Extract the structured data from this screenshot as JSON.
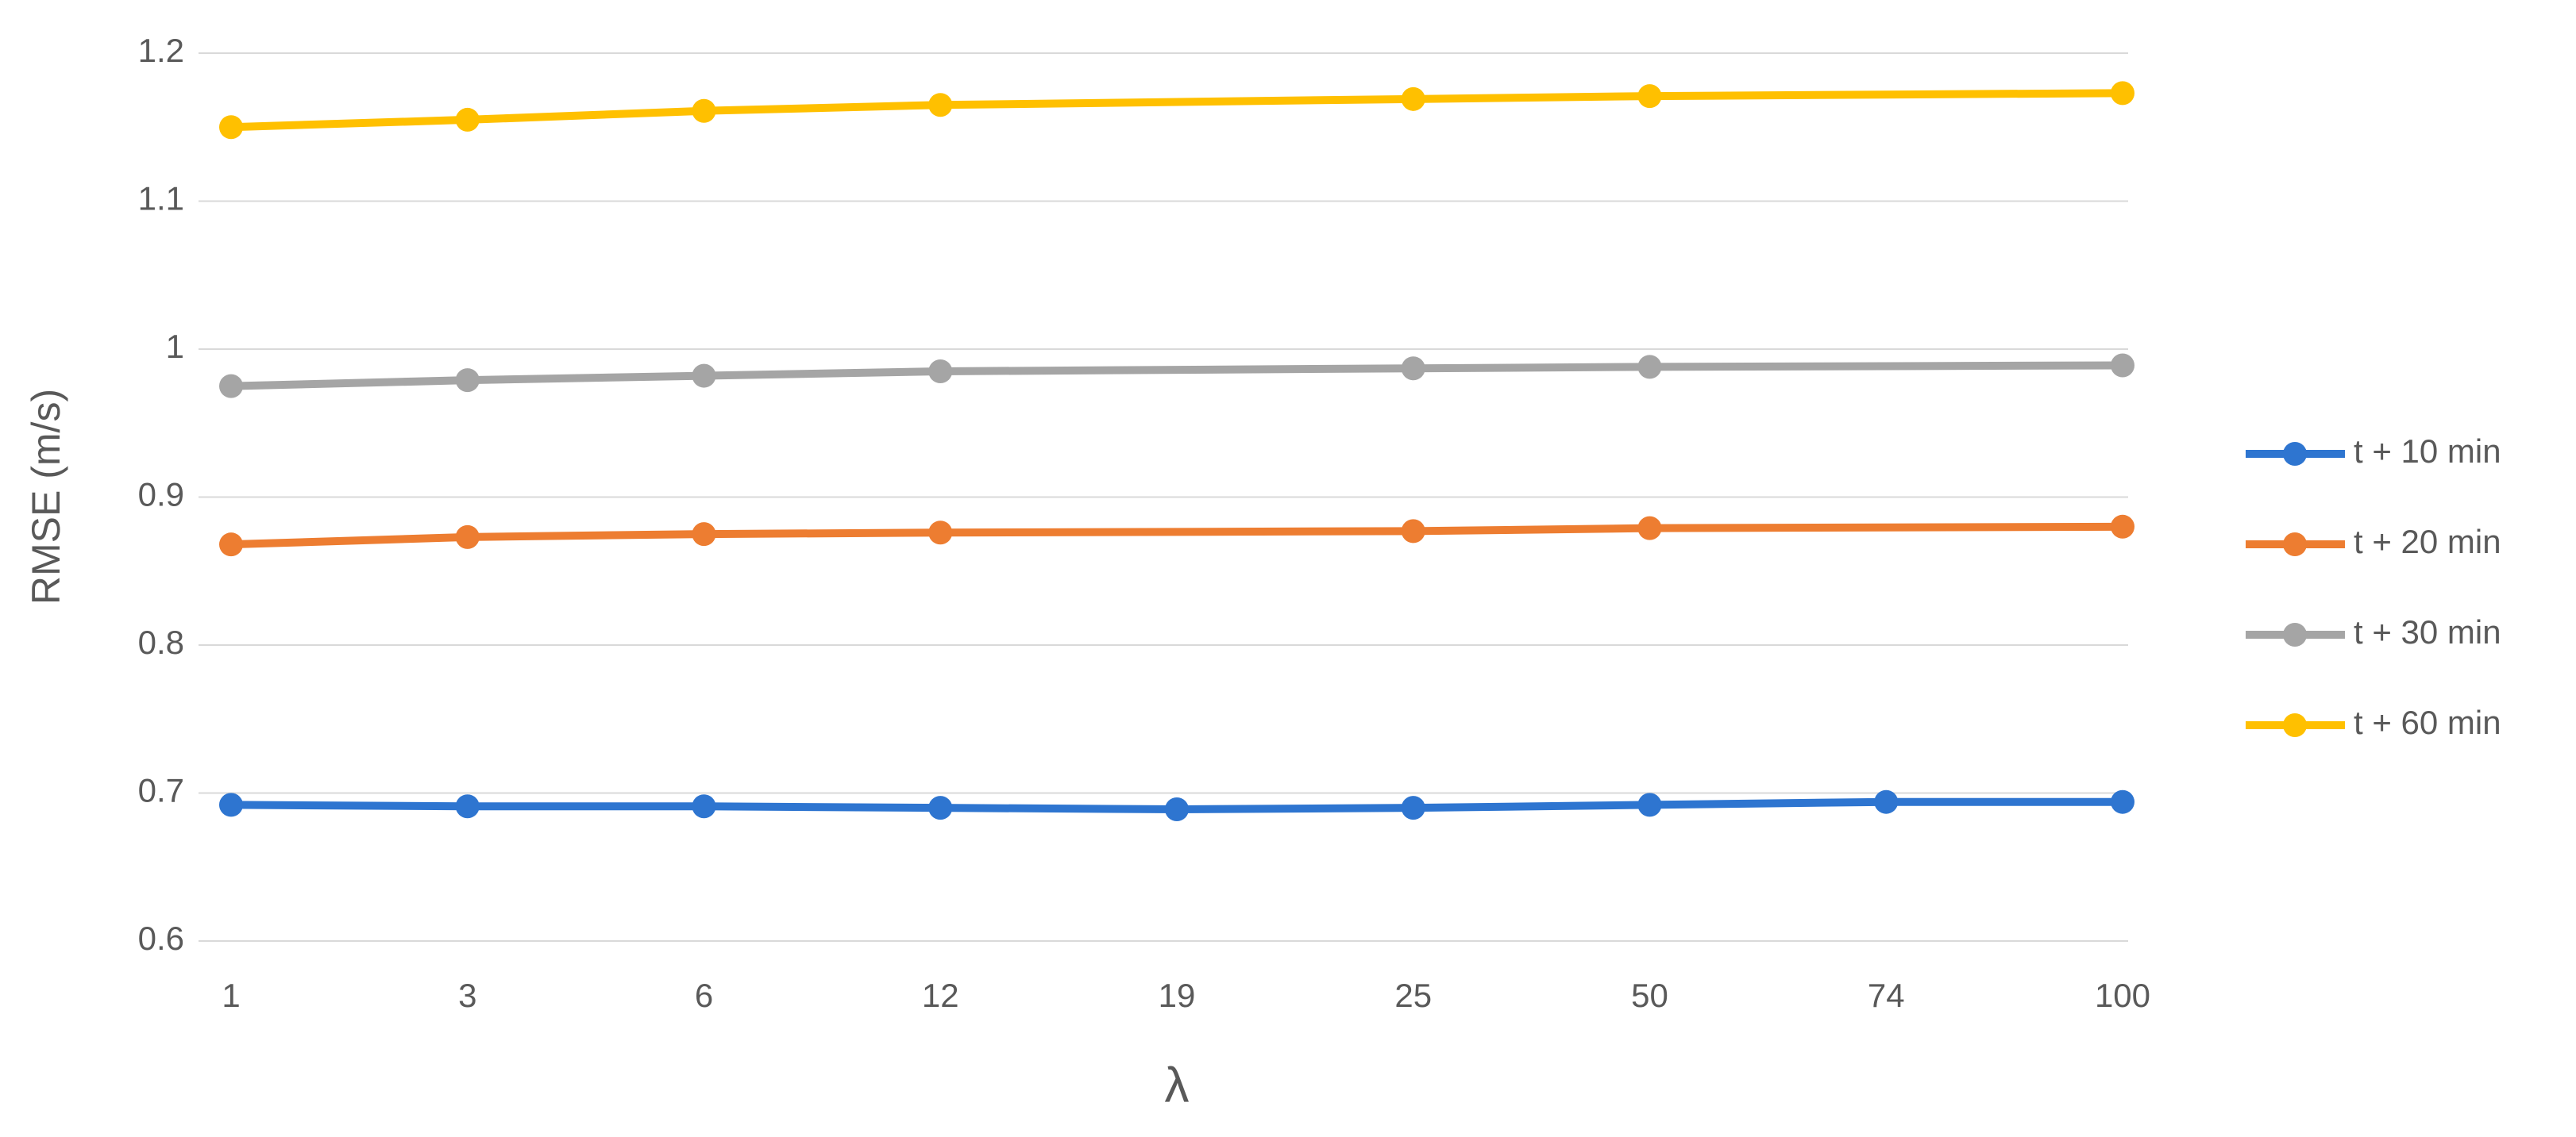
{
  "chart_data": {
    "type": "line",
    "x_label": "λ",
    "y_label": "RMSE (m/s)",
    "categories": [
      "1",
      "3",
      "6",
      "12",
      "19",
      "25",
      "50",
      "74",
      "100"
    ],
    "ylim": [
      0.6,
      1.2
    ],
    "yticks": [
      0.6,
      0.7,
      0.8,
      0.9,
      1,
      1.1,
      1.2
    ],
    "grid": true,
    "legend": "right",
    "series": [
      {
        "name": "t + 10 min",
        "color": "#2e75d0",
        "values": [
          0.692,
          0.691,
          0.691,
          0.69,
          0.689,
          0.69,
          0.692,
          0.694,
          0.694
        ]
      },
      {
        "name": "t + 20 min",
        "color": "#ed7d31",
        "values": [
          0.868,
          0.873,
          0.875,
          0.876,
          null,
          0.877,
          0.879,
          null,
          0.88
        ]
      },
      {
        "name": "t + 30 min",
        "color": "#a5a5a5",
        "values": [
          0.975,
          0.979,
          0.982,
          0.985,
          null,
          0.987,
          0.988,
          null,
          0.989
        ]
      },
      {
        "name": "t + 60 min",
        "color": "#ffc000",
        "values": [
          1.15,
          1.155,
          1.161,
          1.165,
          null,
          1.169,
          1.171,
          null,
          1.173
        ]
      }
    ]
  }
}
